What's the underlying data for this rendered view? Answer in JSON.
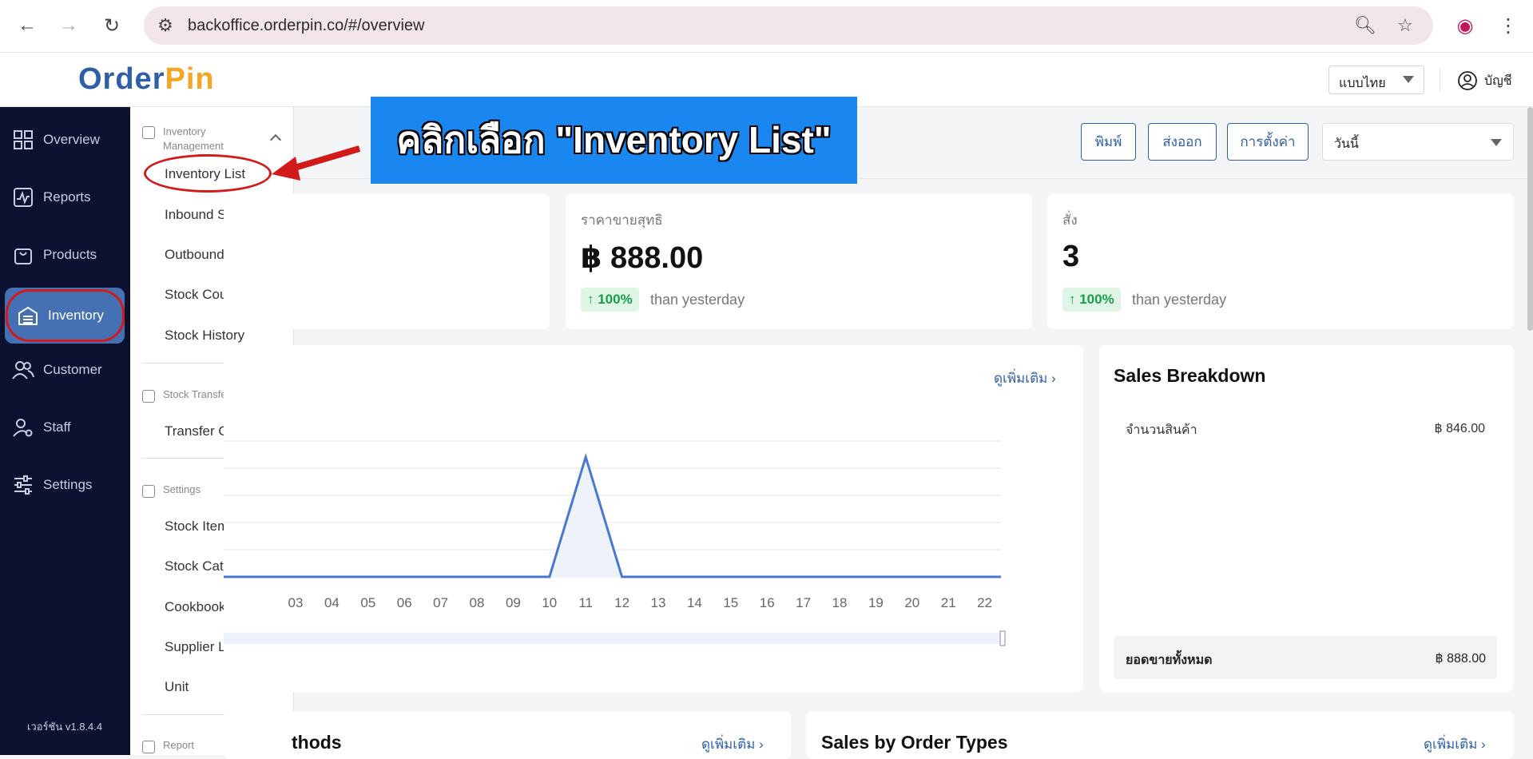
{
  "browser": {
    "url": "backoffice.orderpin.co/#/overview"
  },
  "app": {
    "logo_part1": "Order",
    "logo_part2": "Pin",
    "language": "แบบไทย",
    "account": "บัญชี",
    "version": "เวอร์ชัน v1.8.4.4"
  },
  "sidebar": {
    "items": [
      {
        "label": "Overview",
        "icon": "grid-icon"
      },
      {
        "label": "Reports",
        "icon": "chart-icon"
      },
      {
        "label": "Products",
        "icon": "bag-icon"
      },
      {
        "label": "Inventory",
        "icon": "warehouse-icon"
      },
      {
        "label": "Customer",
        "icon": "users-icon"
      },
      {
        "label": "Staff",
        "icon": "staff-icon"
      },
      {
        "label": "Settings",
        "icon": "sliders-icon"
      }
    ]
  },
  "submenu": {
    "group1": "Inventory Management",
    "group1_items": [
      "Inventory List",
      "Inbound Stock",
      "Outbound Stock",
      "Stock Counting",
      "Stock History"
    ],
    "group2": "Stock Transfer",
    "group2_items": [
      "Transfer Order"
    ],
    "group3": "Settings",
    "group3_items": [
      "Stock Item",
      "Stock Category",
      "Cookbook",
      "Supplier List",
      "Unit"
    ],
    "group4": "Report"
  },
  "toolbar": {
    "print": "พิมพ์",
    "export": "ส่งออก",
    "settings": "การตั้งค่า",
    "date": "วันนี้"
  },
  "cards": [
    {
      "label": "ราคาขายสุทธิ",
      "value": "฿ 888.00",
      "change": "↑ 100%",
      "compare": "than yesterday"
    },
    {
      "label": "สั่ง",
      "value": "3",
      "change": "↑ 100%",
      "compare": "than yesterday"
    }
  ],
  "chart": {
    "more": "ดูเพิ่มเติม"
  },
  "chart_data": {
    "type": "area",
    "x": [
      "03",
      "04",
      "05",
      "06",
      "07",
      "08",
      "09",
      "10",
      "11",
      "12",
      "13",
      "14",
      "15",
      "16",
      "17",
      "18",
      "19",
      "20",
      "21",
      "22"
    ],
    "values": [
      0,
      0,
      0,
      0,
      0,
      0,
      0,
      0,
      888,
      0,
      0,
      0,
      0,
      0,
      0,
      0,
      0,
      0,
      0,
      0
    ]
  },
  "breakdown": {
    "title": "Sales Breakdown",
    "row_label": "จำนวนสินค้า",
    "row_value": "฿ 846.00",
    "total_label": "ยอดขายทั้งหมด",
    "total_value": "฿ 888.00"
  },
  "bottom": {
    "left_title": "thods",
    "left_more": "ดูเพิ่มเติม",
    "right_title": "Sales by Order Types",
    "right_more": "ดูเพิ่มเติม"
  },
  "annotation": {
    "text": "คลิกเลือก \"Inventory List\""
  },
  "colors": {
    "accent": "#2d5fa8",
    "sidebar": "#0d1130",
    "highlight": "#d11a1a",
    "annotation": "#1a86f0"
  }
}
